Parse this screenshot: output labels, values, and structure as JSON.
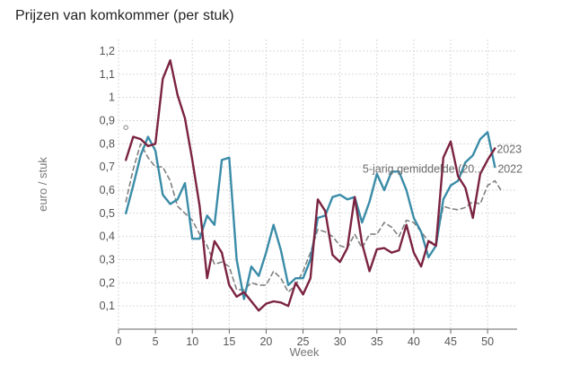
{
  "chart_data": {
    "type": "line",
    "title": "Prijzen van komkommer (per stuk)",
    "xlabel": "Week",
    "ylabel": "euro / stuk",
    "xlim": [
      0,
      54
    ],
    "ylim": [
      0,
      1.25
    ],
    "x_ticks": [
      0,
      5,
      10,
      15,
      20,
      25,
      30,
      35,
      40,
      45,
      50
    ],
    "y_ticks": [
      {
        "value": 0.1,
        "label": "0,1"
      },
      {
        "value": 0.2,
        "label": "0,2"
      },
      {
        "value": 0.3,
        "label": "0,3"
      },
      {
        "value": 0.4,
        "label": "0,4"
      },
      {
        "value": 0.5,
        "label": "0,5"
      },
      {
        "value": 0.6,
        "label": "0,6"
      },
      {
        "value": 0.7,
        "label": "0,7"
      },
      {
        "value": 0.8,
        "label": "0,8"
      },
      {
        "value": 0.9,
        "label": "0,9"
      },
      {
        "value": 1.0,
        "label": "1"
      },
      {
        "value": 1.1,
        "label": "1,1"
      },
      {
        "value": 1.2,
        "label": "1,2"
      }
    ],
    "grid": true,
    "series": [
      {
        "name": "2023",
        "color": "#7b2340",
        "style": "solid",
        "x": [
          1,
          2,
          3,
          4,
          5,
          6,
          7,
          8,
          9,
          10,
          11,
          12,
          13,
          14,
          15,
          16,
          17,
          18,
          19,
          20,
          21,
          22,
          23,
          24,
          25,
          26,
          27,
          28,
          29,
          30,
          31,
          32,
          33,
          34,
          35,
          36,
          37,
          38,
          39,
          40,
          41,
          42,
          43,
          44,
          45,
          46,
          47,
          48,
          49,
          50,
          51
        ],
        "values": [
          0.73,
          0.83,
          0.82,
          0.79,
          0.8,
          1.08,
          1.16,
          1.01,
          0.91,
          0.73,
          0.53,
          0.22,
          0.38,
          0.33,
          0.19,
          0.14,
          0.16,
          0.12,
          0.08,
          0.11,
          0.12,
          0.115,
          0.1,
          0.2,
          0.15,
          0.22,
          0.56,
          0.51,
          0.32,
          0.29,
          0.35,
          0.57,
          0.37,
          0.25,
          0.345,
          0.35,
          0.33,
          0.34,
          0.45,
          0.33,
          0.27,
          0.38,
          0.36,
          0.74,
          0.81,
          0.66,
          0.61,
          0.48,
          0.67,
          0.73,
          0.78
        ]
      },
      {
        "name": "2022",
        "color": "#3a8ca8",
        "style": "solid",
        "x": [
          1,
          2,
          3,
          4,
          5,
          6,
          7,
          8,
          9,
          10,
          11,
          12,
          13,
          14,
          15,
          16,
          17,
          18,
          19,
          20,
          21,
          22,
          23,
          24,
          25,
          26,
          27,
          28,
          29,
          30,
          31,
          32,
          33,
          34,
          35,
          36,
          37,
          38,
          39,
          40,
          41,
          42,
          43,
          44,
          45,
          46,
          47,
          48,
          49,
          50,
          51
        ],
        "values": [
          0.5,
          0.62,
          0.75,
          0.83,
          0.77,
          0.58,
          0.54,
          0.56,
          0.63,
          0.39,
          0.39,
          0.49,
          0.45,
          0.73,
          0.74,
          0.3,
          0.13,
          0.27,
          0.23,
          0.33,
          0.45,
          0.34,
          0.19,
          0.22,
          0.22,
          0.3,
          0.48,
          0.49,
          0.57,
          0.58,
          0.56,
          0.57,
          0.46,
          0.55,
          0.67,
          0.6,
          0.68,
          0.68,
          0.6,
          0.48,
          0.42,
          0.31,
          0.36,
          0.56,
          0.62,
          0.64,
          0.72,
          0.75,
          0.82,
          0.85,
          0.7
        ]
      },
      {
        "name": "5-jarig gemiddelde (20...",
        "color": "#808080",
        "style": "dashed",
        "x": [
          1,
          2,
          3,
          4,
          5,
          6,
          7,
          8,
          9,
          10,
          11,
          12,
          13,
          14,
          15,
          16,
          17,
          18,
          19,
          20,
          21,
          22,
          23,
          24,
          25,
          26,
          27,
          28,
          29,
          30,
          31,
          32,
          33,
          34,
          35,
          36,
          37,
          38,
          39,
          40,
          41,
          42,
          43,
          44,
          45,
          46,
          47,
          48,
          49,
          50,
          51,
          52
        ],
        "values": [
          0.55,
          0.69,
          0.8,
          0.74,
          0.7,
          0.7,
          0.64,
          0.53,
          0.5,
          0.47,
          0.41,
          0.36,
          0.28,
          0.29,
          0.27,
          0.17,
          0.17,
          0.2,
          0.19,
          0.19,
          0.25,
          0.22,
          0.16,
          0.19,
          0.25,
          0.33,
          0.43,
          0.42,
          0.4,
          0.36,
          0.35,
          0.41,
          0.35,
          0.41,
          0.41,
          0.46,
          0.44,
          0.4,
          0.47,
          0.46,
          0.42,
          0.38,
          0.37,
          0.53,
          0.52,
          0.515,
          0.525,
          0.55,
          0.54,
          0.62,
          0.64,
          0.59
        ]
      }
    ],
    "annotations": [
      {
        "type": "point",
        "x": 1,
        "y": 0.87,
        "color": "#999999"
      }
    ]
  }
}
